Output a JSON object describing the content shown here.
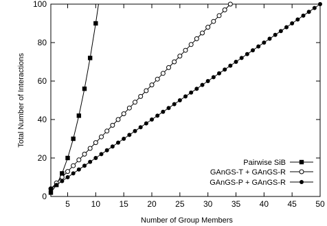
{
  "chart_data": {
    "type": "line",
    "xlabel": "Number of Group Members",
    "ylabel": "Total Number of Interactions",
    "xlim": [
      2,
      50
    ],
    "ylim": [
      0,
      100
    ],
    "xticks": [
      5,
      10,
      15,
      20,
      25,
      30,
      35,
      40,
      45,
      50
    ],
    "yticks": [
      0,
      20,
      40,
      60,
      80,
      100
    ],
    "grid": false,
    "legend_position": "bottom-right",
    "series": [
      {
        "name": "Pairwise SiB",
        "marker": "filled-square",
        "x": [
          2,
          3,
          4,
          5,
          6,
          7,
          8,
          9,
          10
        ],
        "y": [
          2,
          6,
          12,
          20,
          30,
          42,
          56,
          72,
          90
        ],
        "curve_continues_to": {
          "x": 10.5,
          "y": 100
        }
      },
      {
        "name": "GAnGS-T + GAnGS-R",
        "marker": "open-circle",
        "x": [
          2,
          3,
          4,
          5,
          6,
          7,
          8,
          9,
          10,
          11,
          12,
          13,
          14,
          15,
          16,
          17,
          18,
          19,
          20,
          21,
          22,
          23,
          24,
          25,
          26,
          27,
          28,
          29,
          30,
          31,
          32,
          33,
          34
        ],
        "y": [
          4,
          7,
          10,
          13,
          16,
          19,
          22,
          25,
          28,
          31,
          34,
          37,
          40,
          43,
          46,
          49,
          52,
          55,
          58,
          61,
          64,
          67,
          70,
          73,
          76,
          79,
          82,
          85,
          88,
          91,
          94,
          97,
          100
        ]
      },
      {
        "name": "GAnGS-P + GAnGS-R",
        "marker": "filled-circle",
        "x": [
          2,
          3,
          4,
          5,
          6,
          7,
          8,
          9,
          10,
          11,
          12,
          13,
          14,
          15,
          16,
          17,
          18,
          19,
          20,
          21,
          22,
          23,
          24,
          25,
          26,
          27,
          28,
          29,
          30,
          31,
          32,
          33,
          34,
          35,
          36,
          37,
          38,
          39,
          40,
          41,
          42,
          43,
          44,
          45,
          46,
          47,
          48,
          49,
          50
        ],
        "y": [
          4,
          6,
          8,
          10,
          12,
          14,
          16,
          18,
          20,
          22,
          24,
          26,
          28,
          30,
          32,
          34,
          36,
          38,
          40,
          42,
          44,
          46,
          48,
          50,
          52,
          54,
          56,
          58,
          60,
          62,
          64,
          66,
          68,
          70,
          72,
          74,
          76,
          78,
          80,
          82,
          84,
          86,
          88,
          90,
          92,
          94,
          96,
          98,
          100
        ]
      }
    ]
  }
}
